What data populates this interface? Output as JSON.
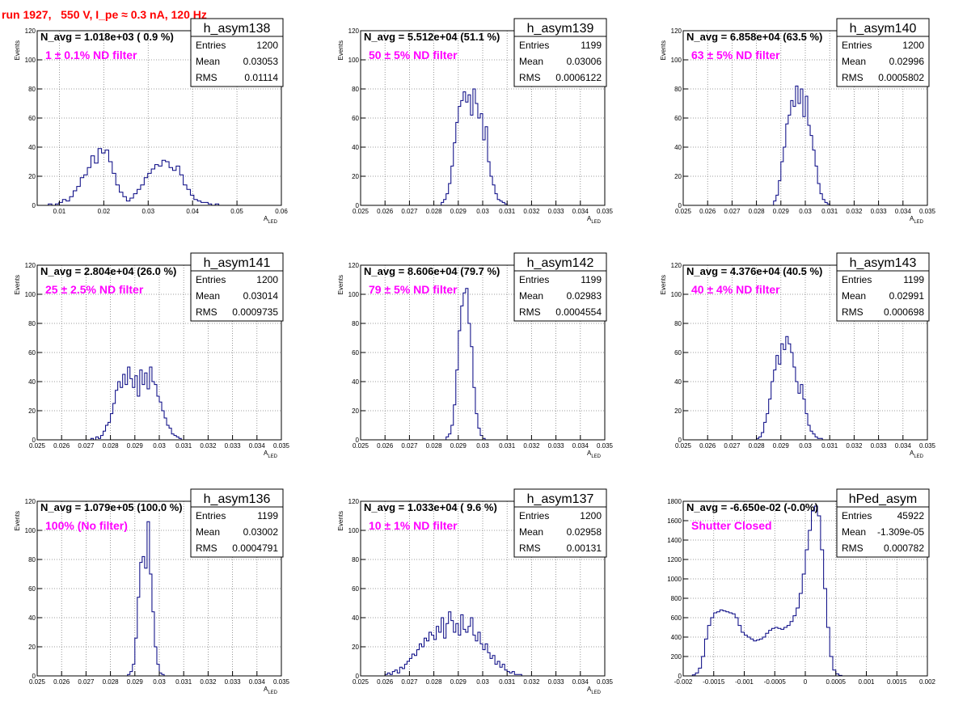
{
  "run_title": "run 1927,   550 V, I_pe ≈ 0.3 nA, 120 Hz",
  "chart_data": [
    {
      "type": "bar",
      "name": "h_asym138",
      "title": "N_avg = 1.018e+03 ( 0.9 %)",
      "annotation": "1 ± 0.1% ND filter",
      "ylabel": "Events",
      "xlabel": "A",
      "xlabel_sub": "LED",
      "xlim": [
        0.005,
        0.06
      ],
      "ylim": [
        0,
        120
      ],
      "xticks": [
        0.01,
        0.02,
        0.03,
        0.04,
        0.05,
        0.06
      ],
      "xtick_labels": [
        "0.01",
        "0.02",
        "0.03",
        "0.04",
        "0.05",
        "0.06"
      ],
      "yticks": [
        0,
        20,
        40,
        60,
        80,
        100,
        120
      ],
      "ytick_labels": [
        "0",
        "20",
        "40",
        "60",
        "80",
        "100",
        "120"
      ],
      "stats": {
        "header": "h_asym138",
        "rows": [
          [
            "Entries",
            "1200"
          ],
          [
            "Mean",
            "0.03053"
          ],
          [
            "RMS",
            "0.01114"
          ]
        ]
      },
      "stat_font": 12,
      "hist": {
        "x0": 0.0075,
        "bin_width": 0.0008,
        "values": [
          1,
          0,
          1,
          2,
          4,
          3,
          6,
          10,
          13,
          19,
          21,
          26,
          34,
          29,
          39,
          36,
          38,
          30,
          22,
          14,
          9,
          6,
          3,
          5,
          8,
          11,
          14,
          19,
          22,
          25,
          28,
          27,
          31,
          30,
          26,
          24,
          27,
          21,
          14,
          11,
          7,
          4,
          3,
          2,
          2,
          1,
          0,
          1
        ]
      },
      "legend": "none",
      "grid": true
    },
    {
      "type": "bar",
      "name": "h_asym139",
      "title": "N_avg = 5.512e+04 (51.1 %)",
      "annotation": "50 ± 5% ND filter",
      "ylabel": "Events",
      "xlabel": "A",
      "xlabel_sub": "LED",
      "xlim": [
        0.025,
        0.035
      ],
      "ylim": [
        0,
        120
      ],
      "xticks": [
        0.025,
        0.026,
        0.027,
        0.028,
        0.029,
        0.03,
        0.031,
        0.032,
        0.033,
        0.034,
        0.035
      ],
      "xtick_labels": [
        "0.025",
        "0.026",
        "0.027",
        "0.028",
        "0.029",
        "0.03",
        "0.031",
        "0.032",
        "0.033",
        "0.034",
        "0.035"
      ],
      "yticks": [
        0,
        20,
        40,
        60,
        80,
        100,
        120
      ],
      "ytick_labels": [
        "0",
        "20",
        "40",
        "60",
        "80",
        "100",
        "120"
      ],
      "stats": {
        "header": "h_asym139",
        "rows": [
          [
            "Entries",
            "1199"
          ],
          [
            "Mean",
            "0.03006"
          ],
          [
            "RMS",
            "0.0006122"
          ]
        ]
      },
      "stat_font": 11,
      "hist": {
        "x0": 0.0283,
        "bin_width": 0.0001,
        "values": [
          2,
          4,
          8,
          15,
          27,
          43,
          57,
          68,
          72,
          78,
          71,
          76,
          62,
          80,
          70,
          60,
          63,
          45,
          54,
          30,
          20,
          14,
          8,
          4,
          3,
          2,
          1
        ]
      },
      "legend": "none",
      "grid": true
    },
    {
      "type": "bar",
      "name": "h_asym140",
      "title": "N_avg = 6.858e+04 (63.5 %)",
      "annotation": "63 ± 5% ND filter",
      "ylabel": "Events",
      "xlabel": "A",
      "xlabel_sub": "LED",
      "xlim": [
        0.025,
        0.035
      ],
      "ylim": [
        0,
        120
      ],
      "xticks": [
        0.025,
        0.026,
        0.027,
        0.028,
        0.029,
        0.03,
        0.031,
        0.032,
        0.033,
        0.034,
        0.035
      ],
      "xtick_labels": [
        "0.025",
        "0.026",
        "0.027",
        "0.028",
        "0.029",
        "0.03",
        "0.031",
        "0.032",
        "0.033",
        "0.034",
        "0.035"
      ],
      "yticks": [
        0,
        20,
        40,
        60,
        80,
        100,
        120
      ],
      "ytick_labels": [
        "0",
        "20",
        "40",
        "60",
        "80",
        "100",
        "120"
      ],
      "stats": {
        "header": "h_asym140",
        "rows": [
          [
            "Entries",
            "1200"
          ],
          [
            "Mean",
            "0.02996"
          ],
          [
            "RMS",
            "0.0005802"
          ]
        ]
      },
      "stat_font": 11,
      "hist": {
        "x0": 0.0287,
        "bin_width": 0.0001,
        "values": [
          3,
          7,
          17,
          30,
          40,
          56,
          62,
          72,
          68,
          82,
          70,
          80,
          61,
          75,
          55,
          48,
          38,
          27,
          15,
          8,
          4,
          2,
          1
        ]
      },
      "legend": "none",
      "grid": true
    },
    {
      "type": "bar",
      "name": "h_asym141",
      "title": "N_avg = 2.804e+04 (26.0 %)",
      "annotation": "25 ± 2.5% ND filter",
      "ylabel": "Events",
      "xlabel": "A",
      "xlabel_sub": "LED",
      "xlim": [
        0.025,
        0.035
      ],
      "ylim": [
        0,
        120
      ],
      "xticks": [
        0.025,
        0.026,
        0.027,
        0.028,
        0.029,
        0.03,
        0.031,
        0.032,
        0.033,
        0.034,
        0.035
      ],
      "xtick_labels": [
        "0.025",
        "0.026",
        "0.027",
        "0.028",
        "0.029",
        "0.03",
        "0.031",
        "0.032",
        "0.033",
        "0.034",
        "0.035"
      ],
      "yticks": [
        0,
        20,
        40,
        60,
        80,
        100,
        120
      ],
      "ytick_labels": [
        "0",
        "20",
        "40",
        "60",
        "80",
        "100",
        "120"
      ],
      "stats": {
        "header": "h_asym141",
        "rows": [
          [
            "Entries",
            "1200"
          ],
          [
            "Mean",
            "0.03014"
          ],
          [
            "RMS",
            "0.0009735"
          ]
        ]
      },
      "stat_font": 11,
      "hist": {
        "x0": 0.0272,
        "bin_width": 0.0001,
        "values": [
          1,
          0,
          2,
          1,
          3,
          6,
          10,
          12,
          18,
          25,
          34,
          40,
          36,
          45,
          38,
          50,
          42,
          36,
          44,
          30,
          48,
          38,
          46,
          35,
          50,
          40,
          38,
          30,
          26,
          20,
          15,
          10,
          8,
          4,
          3,
          2,
          1
        ]
      },
      "legend": "none",
      "grid": true
    },
    {
      "type": "bar",
      "name": "h_asym142",
      "title": "N_avg = 8.606e+04 (79.7 %)",
      "annotation": "79 ± 5% ND filter",
      "ylabel": "Events",
      "xlabel": "A",
      "xlabel_sub": "LED",
      "xlim": [
        0.025,
        0.035
      ],
      "ylim": [
        0,
        120
      ],
      "xticks": [
        0.025,
        0.026,
        0.027,
        0.028,
        0.029,
        0.03,
        0.031,
        0.032,
        0.033,
        0.034,
        0.035
      ],
      "xtick_labels": [
        "0.025",
        "0.026",
        "0.027",
        "0.028",
        "0.029",
        "0.03",
        "0.031",
        "0.032",
        "0.033",
        "0.034",
        "0.035"
      ],
      "yticks": [
        0,
        20,
        40,
        60,
        80,
        100,
        120
      ],
      "ytick_labels": [
        "0",
        "20",
        "40",
        "60",
        "80",
        "100",
        "120"
      ],
      "stats": {
        "header": "h_asym142",
        "rows": [
          [
            "Entries",
            "1199"
          ],
          [
            "Mean",
            "0.02983"
          ],
          [
            "RMS",
            "0.0004554"
          ]
        ]
      },
      "stat_font": 11,
      "hist": {
        "x0": 0.0285,
        "bin_width": 0.0001,
        "values": [
          2,
          4,
          10,
          24,
          48,
          75,
          92,
          101,
          104,
          80,
          64,
          36,
          18,
          8,
          3,
          1
        ]
      },
      "legend": "none",
      "grid": true
    },
    {
      "type": "bar",
      "name": "h_asym143",
      "title": "N_avg = 4.376e+04 (40.5 %)",
      "annotation": "40 ± 4% ND filter",
      "ylabel": "Events",
      "xlabel": "A",
      "xlabel_sub": "LED",
      "xlim": [
        0.025,
        0.035
      ],
      "ylim": [
        0,
        120
      ],
      "xticks": [
        0.025,
        0.026,
        0.027,
        0.028,
        0.029,
        0.03,
        0.031,
        0.032,
        0.033,
        0.034,
        0.035
      ],
      "xtick_labels": [
        "0.025",
        "0.026",
        "0.027",
        "0.028",
        "0.029",
        "0.03",
        "0.031",
        "0.032",
        "0.033",
        "0.034",
        "0.035"
      ],
      "yticks": [
        0,
        20,
        40,
        60,
        80,
        100,
        120
      ],
      "ytick_labels": [
        "0",
        "20",
        "40",
        "60",
        "80",
        "100",
        "120"
      ],
      "stats": {
        "header": "h_asym143",
        "rows": [
          [
            "Entries",
            "1199"
          ],
          [
            "Mean",
            "0.02991"
          ],
          [
            "RMS",
            "0.000698"
          ]
        ]
      },
      "stat_font": 11,
      "hist": {
        "x0": 0.028,
        "bin_width": 0.0001,
        "values": [
          1,
          2,
          5,
          12,
          18,
          28,
          40,
          48,
          58,
          52,
          66,
          62,
          71,
          66,
          60,
          50,
          40,
          32,
          38,
          28,
          18,
          10,
          6,
          4,
          2,
          1,
          1
        ]
      },
      "legend": "none",
      "grid": true
    },
    {
      "type": "bar",
      "name": "h_asym136",
      "title": "N_avg = 1.079e+05 (100.0 %)",
      "annotation": "100% (No filter)",
      "ylabel": "Events",
      "xlabel": "A",
      "xlabel_sub": "LED",
      "xlim": [
        0.025,
        0.035
      ],
      "ylim": [
        0,
        120
      ],
      "xticks": [
        0.025,
        0.026,
        0.027,
        0.028,
        0.029,
        0.03,
        0.031,
        0.032,
        0.033,
        0.034,
        0.035
      ],
      "xtick_labels": [
        "0.025",
        "0.026",
        "0.027",
        "0.028",
        "0.029",
        "0.03",
        "0.031",
        "0.032",
        "0.033",
        "0.034",
        "0.035"
      ],
      "yticks": [
        0,
        20,
        40,
        60,
        80,
        100,
        120
      ],
      "ytick_labels": [
        "0",
        "20",
        "40",
        "60",
        "80",
        "100",
        "120"
      ],
      "stats": {
        "header": "h_asym136",
        "rows": [
          [
            "Entries",
            "1199"
          ],
          [
            "Mean",
            "0.03002"
          ],
          [
            "RMS",
            "0.0004791"
          ]
        ]
      },
      "stat_font": 11,
      "hist": {
        "x0": 0.0287,
        "bin_width": 0.0001,
        "values": [
          1,
          3,
          8,
          26,
          54,
          78,
          82,
          74,
          106,
          70,
          44,
          20,
          8,
          2,
          1
        ]
      },
      "legend": "none",
      "grid": true
    },
    {
      "type": "bar",
      "name": "h_asym137",
      "title": "N_avg = 1.033e+04 ( 9.6 %)",
      "annotation": "10 ± 1% ND filter",
      "ylabel": "Events",
      "xlabel": "A",
      "xlabel_sub": "LED",
      "xlim": [
        0.025,
        0.035
      ],
      "ylim": [
        0,
        120
      ],
      "xticks": [
        0.025,
        0.026,
        0.027,
        0.028,
        0.029,
        0.03,
        0.031,
        0.032,
        0.033,
        0.034,
        0.035
      ],
      "xtick_labels": [
        "0.025",
        "0.026",
        "0.027",
        "0.028",
        "0.029",
        "0.03",
        "0.031",
        "0.032",
        "0.033",
        "0.034",
        "0.035"
      ],
      "yticks": [
        0,
        20,
        40,
        60,
        80,
        100,
        120
      ],
      "ytick_labels": [
        "0",
        "20",
        "40",
        "60",
        "80",
        "100",
        "120"
      ],
      "stats": {
        "header": "h_asym137",
        "rows": [
          [
            "Entries",
            "1200"
          ],
          [
            "Mean",
            "0.02958"
          ],
          [
            "RMS",
            "0.00131"
          ]
        ]
      },
      "stat_font": 14,
      "hist": {
        "x0": 0.026,
        "bin_width": 0.0001,
        "values": [
          1,
          2,
          1,
          3,
          4,
          2,
          6,
          5,
          8,
          10,
          12,
          15,
          14,
          18,
          22,
          20,
          26,
          24,
          30,
          28,
          25,
          34,
          30,
          40,
          26,
          36,
          44,
          38,
          30,
          36,
          28,
          42,
          32,
          30,
          34,
          40,
          28,
          24,
          30,
          22,
          18,
          22,
          16,
          12,
          14,
          8,
          10,
          6,
          8,
          4,
          3,
          2,
          3,
          1,
          1,
          1
        ]
      },
      "legend": "none",
      "grid": true
    },
    {
      "type": "bar",
      "name": "hPed_asym",
      "title": "N_avg = -6.650e-02 (-0.0%)",
      "annotation": "Shutter Closed",
      "ylabel": "",
      "xlabel": "",
      "xlabel_sub": "",
      "xlim": [
        -0.002,
        0.002
      ],
      "ylim": [
        0,
        1800
      ],
      "xticks": [
        -0.002,
        -0.0015,
        -0.001,
        -0.0005,
        0,
        0.0005,
        0.001,
        0.0015,
        0.002
      ],
      "xtick_labels": [
        "-0.002",
        "-0.0015",
        "-0.001",
        "-0.0005",
        "0",
        "0.0005",
        "0.001",
        "0.0015",
        "0.002"
      ],
      "yticks": [
        0,
        200,
        400,
        600,
        800,
        1000,
        1200,
        1400,
        1600,
        1800
      ],
      "ytick_labels": [
        "0",
        "200",
        "400",
        "600",
        "800",
        "1000",
        "1200",
        "1400",
        "1600",
        "1800"
      ],
      "stats": {
        "header": "hPed_asym",
        "rows": [
          [
            "Entries",
            "45922"
          ],
          [
            "Mean",
            "-1.309e-05"
          ],
          [
            "RMS",
            "0.000782"
          ]
        ]
      },
      "stat_font": 12,
      "hist": {
        "x0": -0.00185,
        "bin_width": 5e-05,
        "values": [
          10,
          30,
          80,
          200,
          380,
          520,
          600,
          650,
          660,
          680,
          670,
          660,
          650,
          640,
          600,
          520,
          450,
          420,
          400,
          380,
          360,
          370,
          380,
          400,
          440,
          470,
          490,
          500,
          490,
          480,
          500,
          520,
          560,
          620,
          700,
          850,
          1050,
          1300,
          1500,
          1700,
          1750,
          1650,
          1300,
          900,
          500,
          200,
          60,
          20,
          5
        ]
      },
      "legend": "none",
      "grid": true
    }
  ]
}
